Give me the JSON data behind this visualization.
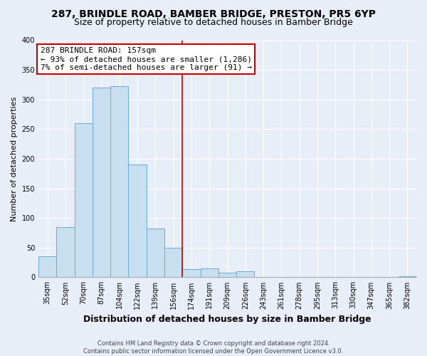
{
  "title": "287, BRINDLE ROAD, BAMBER BRIDGE, PRESTON, PR5 6YP",
  "subtitle": "Size of property relative to detached houses in Bamber Bridge",
  "xlabel": "Distribution of detached houses by size in Bamber Bridge",
  "ylabel": "Number of detached properties",
  "bin_labels": [
    "35sqm",
    "52sqm",
    "70sqm",
    "87sqm",
    "104sqm",
    "122sqm",
    "139sqm",
    "156sqm",
    "174sqm",
    "191sqm",
    "209sqm",
    "226sqm",
    "243sqm",
    "261sqm",
    "278sqm",
    "295sqm",
    "313sqm",
    "330sqm",
    "347sqm",
    "365sqm",
    "382sqm"
  ],
  "bar_values": [
    35,
    85,
    260,
    320,
    322,
    190,
    82,
    50,
    14,
    15,
    8,
    10,
    1,
    0,
    0,
    0,
    0,
    0,
    0,
    0,
    2
  ],
  "bar_color": "#c8dff0",
  "bar_edge_color": "#6aaad4",
  "highlight_line_color": "#cc0000",
  "annotation_text_line1": "287 BRINDLE ROAD: 157sqm",
  "annotation_text_line2": "← 93% of detached houses are smaller (1,286)",
  "annotation_text_line3": "7% of semi-detached houses are larger (91) →",
  "annotation_box_facecolor": "#ffffff",
  "annotation_box_edgecolor": "#cc0000",
  "ylim": [
    0,
    400
  ],
  "yticks": [
    0,
    50,
    100,
    150,
    200,
    250,
    300,
    350,
    400
  ],
  "bg_color": "#e8eef8",
  "grid_color": "#ffffff",
  "footer_text": "Contains HM Land Registry data © Crown copyright and database right 2024.\nContains public sector information licensed under the Open Government Licence v3.0.",
  "title_fontsize": 10,
  "subtitle_fontsize": 9,
  "axis_label_fontsize": 8,
  "tick_fontsize": 7,
  "annotation_fontsize": 8,
  "footer_fontsize": 6
}
